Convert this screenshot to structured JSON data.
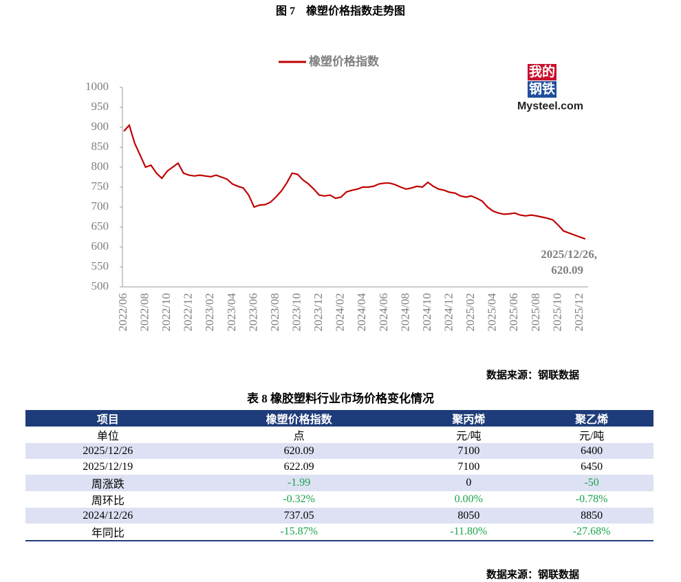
{
  "figure_title": "图 7　橡塑价格指数走势图",
  "chart_data": {
    "type": "line",
    "x": [
      "2022/06",
      null,
      null,
      null,
      "2022/08",
      null,
      null,
      null,
      "2022/10",
      null,
      null,
      null,
      "2022/12",
      null,
      null,
      null,
      "2023/02",
      null,
      null,
      null,
      "2023/04",
      null,
      null,
      null,
      "2023/06",
      null,
      null,
      null,
      "2023/08",
      null,
      null,
      null,
      "2023/10",
      null,
      null,
      null,
      "2023/12",
      null,
      null,
      null,
      "2024/02",
      null,
      null,
      null,
      "2024/04",
      null,
      null,
      null,
      "2024/06",
      null,
      null,
      null,
      "2024/08",
      null,
      null,
      null,
      "2024/10",
      null,
      null,
      null,
      "2024/12",
      null,
      null,
      null,
      "2025/02",
      null,
      null,
      null,
      "2025/04",
      null,
      null,
      null,
      "2025/06",
      null,
      null,
      null,
      "2025/08",
      null,
      null,
      null,
      "2025/10",
      null,
      null,
      null,
      "2025/12",
      null
    ],
    "series": [
      {
        "name": "橡塑价格指数",
        "color": "#c00000",
        "values": [
          890,
          905,
          860,
          830,
          800,
          805,
          785,
          772,
          790,
          800,
          810,
          785,
          780,
          778,
          780,
          778,
          776,
          780,
          775,
          770,
          758,
          752,
          748,
          730,
          700,
          705,
          706,
          712,
          725,
          740,
          760,
          785,
          782,
          768,
          758,
          745,
          730,
          728,
          730,
          722,
          725,
          738,
          742,
          745,
          750,
          750,
          752,
          758,
          760,
          760,
          756,
          750,
          745,
          748,
          752,
          750,
          762,
          752,
          745,
          742,
          737,
          735,
          728,
          725,
          728,
          722,
          715,
          700,
          690,
          685,
          682,
          683,
          685,
          680,
          678,
          680,
          678,
          675,
          672,
          668,
          655,
          640,
          635,
          630,
          625,
          620.09
        ]
      }
    ],
    "ylim": [
      500,
      1000
    ],
    "yticks": [
      500,
      550,
      600,
      650,
      700,
      750,
      800,
      850,
      900,
      950,
      1000
    ],
    "annotation": [
      "2025/12/26,",
      "620.09"
    ]
  },
  "logo": {
    "top": "我的",
    "middle": "钢铁",
    "bottom": "Mysteel.com"
  },
  "chart_source": "数据来源：钢联数据",
  "table": {
    "title": "表 8 橡胶塑料行业市场价格变化情况",
    "header": [
      "项目",
      "橡塑价格指数",
      "聚丙烯",
      "聚乙烯"
    ],
    "rows": [
      [
        "单位",
        "点",
        "元/吨",
        "元/吨"
      ],
      [
        "2025/12/26",
        "620.09",
        "7100",
        "6400"
      ],
      [
        "2025/12/19",
        "622.09",
        "7100",
        "6450"
      ],
      [
        "周涨跌",
        "-1.99",
        "0",
        "-50"
      ],
      [
        "周环比",
        "-0.32%",
        "0.00%",
        "-0.78%"
      ],
      [
        "2024/12/26",
        "737.05",
        "8050",
        "8850"
      ],
      [
        "年同比",
        "-15.87%",
        "-11.80%",
        "-27.68%"
      ]
    ]
  },
  "table_source": "数据来源：钢联数据"
}
